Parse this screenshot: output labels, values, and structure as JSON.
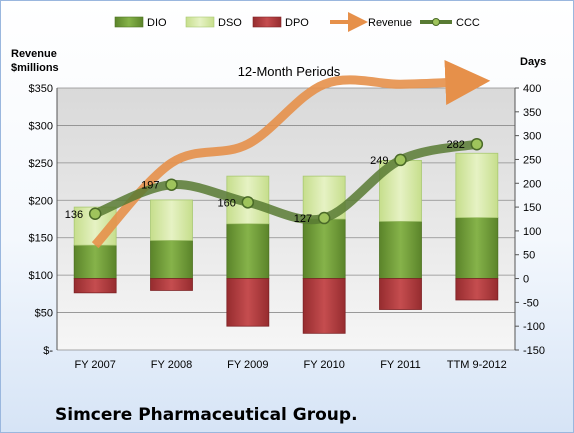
{
  "chart_data": {
    "type": "bar",
    "title": "12-Month Periods",
    "footer": "Simcere Pharmaceutical Group.",
    "categories": [
      "FY 2007",
      "FY 2008",
      "FY 2009",
      "FY 2010",
      "FY 2011",
      "TTM 9-2012"
    ],
    "left_axis": {
      "title_line1": "Revenue",
      "title_line2": "$millions",
      "range": [
        0,
        350
      ],
      "ticks": [
        0,
        50,
        100,
        150,
        200,
        250,
        300,
        350
      ],
      "tick_labels": [
        "$-",
        "$50",
        "$100",
        "$150",
        "$200",
        "$250",
        "$300",
        "$350"
      ]
    },
    "right_axis": {
      "title": "Days",
      "range": [
        -150,
        400
      ],
      "ticks": [
        -150,
        -100,
        -50,
        0,
        50,
        100,
        150,
        200,
        250,
        300,
        350,
        400
      ],
      "tick_labels": [
        "-150",
        "-100",
        "-50",
        "0",
        "50",
        "100",
        "150",
        "200",
        "250",
        "300",
        "350",
        "400"
      ]
    },
    "grid": true,
    "legend": {
      "position": "top",
      "entries": [
        "DIO",
        "DSO",
        "DPO",
        "Revenue",
        "CCC"
      ]
    },
    "series": [
      {
        "name": "DIO",
        "axis": "right",
        "kind": "stacked-bar",
        "color": "#6e9a35",
        "values": [
          70,
          80,
          115,
          125,
          120,
          128
        ]
      },
      {
        "name": "DSO",
        "axis": "right",
        "kind": "stacked-bar",
        "color": "#d6e9a8",
        "values": [
          80,
          85,
          100,
          90,
          128,
          135
        ]
      },
      {
        "name": "DPO",
        "axis": "right",
        "kind": "negative-bar",
        "color": "#b33b3d",
        "values": [
          -30,
          -25,
          -100,
          -115,
          -65,
          -45
        ]
      },
      {
        "name": "Revenue",
        "axis": "left",
        "kind": "arrow-line",
        "color": "#e6904a",
        "values": [
          140,
          250,
          275,
          355,
          355,
          358
        ]
      },
      {
        "name": "CCC",
        "axis": "right",
        "kind": "line",
        "color": "#5d7f36",
        "values": [
          136,
          197,
          160,
          127,
          249,
          282
        ],
        "data_labels": [
          "136",
          "197",
          "160",
          "127",
          "249",
          "282"
        ]
      }
    ]
  }
}
